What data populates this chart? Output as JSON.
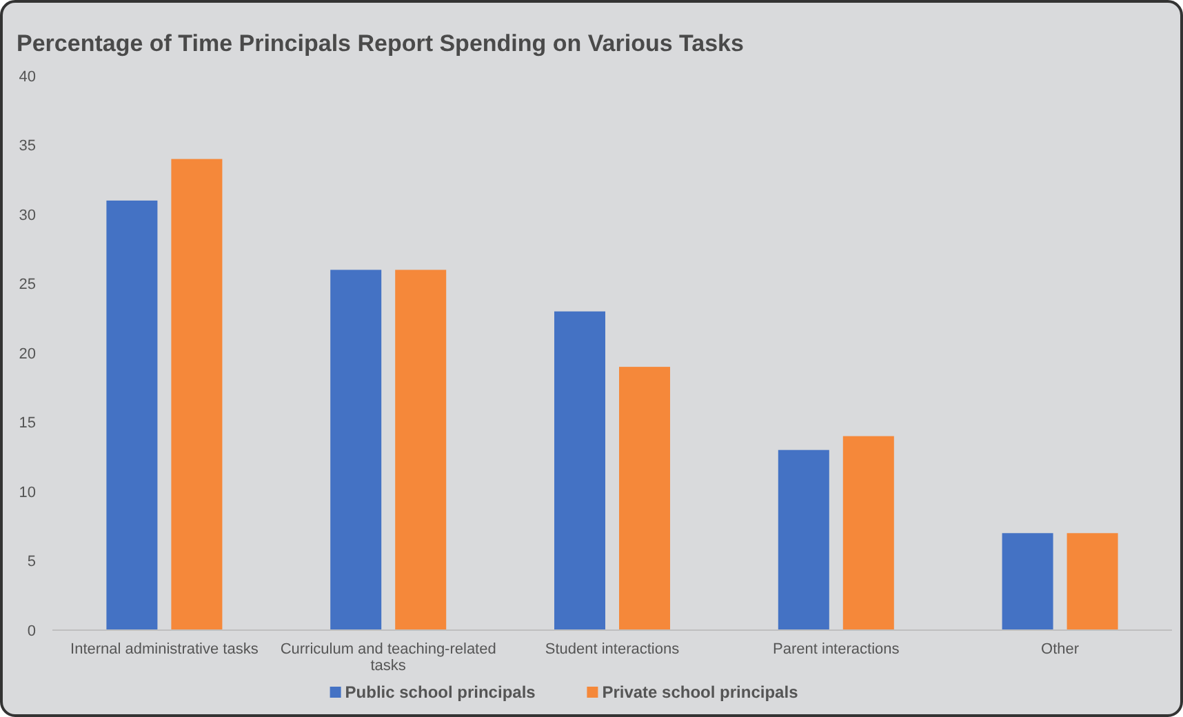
{
  "chart_data": {
    "type": "bar",
    "title": "Percentage of Time Principals Report Spending on Various Tasks",
    "categories": [
      "Internal administrative tasks",
      "Curriculum and teaching-related tasks",
      "Student interactions",
      "Parent interactions",
      "Other"
    ],
    "series": [
      {
        "name": "Public school principals",
        "color": "#4472c4",
        "values": [
          31,
          26,
          23,
          13,
          7
        ]
      },
      {
        "name": "Private school principals",
        "color": "#f5883a",
        "values": [
          34,
          26,
          19,
          14,
          7
        ]
      }
    ],
    "ylim": [
      0,
      40
    ],
    "yticks": [
      0,
      5,
      10,
      15,
      20,
      25,
      30,
      35,
      40
    ],
    "grid": false,
    "legend": "bottom"
  }
}
